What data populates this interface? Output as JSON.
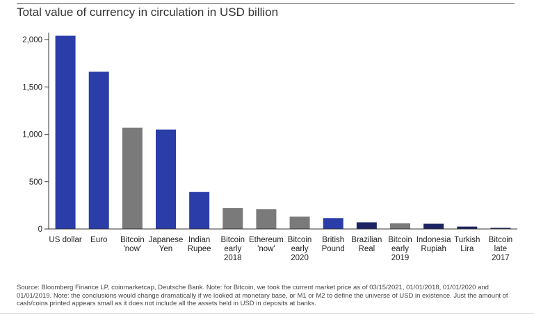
{
  "title": "Total value of currency in circulation in USD billion",
  "source": "Source: Bloomberg Finance LP, coinmarketcap, Deutsche Bank. Note: for Bitcoin, we took the current market price as of 03/15/2021, 01/01/2018, 01/01/2020 and 01/01/2019. Note: the conclusions would change dramatically if we looked at monetary base, or M1 or M2 to define the universe of USD in existence. Just the amount of cash/coins printed appears small as it does not include all the assets held in USD in deposits at banks.",
  "chart_data": {
    "type": "bar",
    "title": "Total value of currency in circulation in USD billion",
    "xlabel": "",
    "ylabel": "",
    "ylim": [
      0,
      2000
    ],
    "yticks": [
      "0",
      "500",
      "1,000",
      "1,500",
      "2,000"
    ],
    "ytick_values": [
      0,
      500,
      1000,
      1500,
      2000
    ],
    "grid": false,
    "categories": [
      [
        "US dollar"
      ],
      [
        "Euro"
      ],
      [
        "Bitcoin",
        "'now'"
      ],
      [
        "Japanese",
        "Yen"
      ],
      [
        "Indian",
        "Rupee"
      ],
      [
        "Bitcoin",
        "early",
        "2018"
      ],
      [
        "Ethereum",
        "'now'"
      ],
      [
        "Bitcoin",
        "early",
        "2020"
      ],
      [
        "British",
        "Pound"
      ],
      [
        "Brazilian",
        "Real"
      ],
      [
        "Bitcoin",
        "early",
        "2019"
      ],
      [
        "Indonesia",
        "Rupiah"
      ],
      [
        "Turkish",
        "Lira"
      ],
      [
        "Bitcoin",
        "late",
        "2017"
      ]
    ],
    "values": [
      2040,
      1660,
      1070,
      1050,
      390,
      220,
      210,
      130,
      115,
      70,
      60,
      55,
      25,
      12
    ],
    "colors": [
      "#2a3da8",
      "#2a3da8",
      "#7a7a7a",
      "#2a3da8",
      "#2a3da8",
      "#7a7a7a",
      "#7a7a7a",
      "#7a7a7a",
      "#2a3da8",
      "#1c2562",
      "#7a7a7a",
      "#1c2562",
      "#1c2562",
      "#1c2562"
    ]
  }
}
